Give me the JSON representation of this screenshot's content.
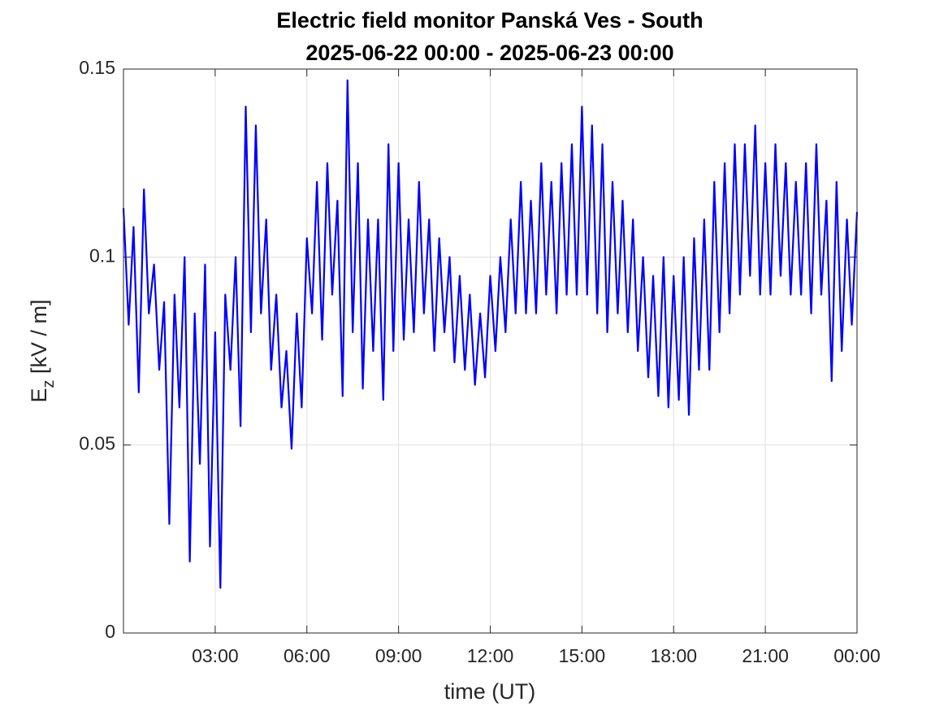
{
  "chart_data": {
    "type": "line",
    "title": "Electric field monitor Panská Ves - South",
    "subtitle": "2025-06-22 00:00 - 2025-06-23 00:00",
    "xlabel": "time (UT)",
    "ylabel": [
      "E",
      "z",
      " [kV / m]"
    ],
    "xlim": [
      0,
      24
    ],
    "ylim": [
      0,
      0.15
    ],
    "xticks": [
      {
        "value": 3,
        "label": "03:00"
      },
      {
        "value": 6,
        "label": "06:00"
      },
      {
        "value": 9,
        "label": "09:00"
      },
      {
        "value": 12,
        "label": "12:00"
      },
      {
        "value": 15,
        "label": "15:00"
      },
      {
        "value": 18,
        "label": "18:00"
      },
      {
        "value": 21,
        "label": "21:00"
      },
      {
        "value": 24,
        "label": "00:00"
      }
    ],
    "yticks": [
      0,
      0.05,
      0.1,
      0.15
    ],
    "grid": true,
    "series": [
      {
        "color": "#0000ff",
        "x": [
          0,
          0.17,
          0.33,
          0.5,
          0.67,
          0.83,
          1,
          1.17,
          1.33,
          1.5,
          1.67,
          1.83,
          2,
          2.17,
          2.33,
          2.5,
          2.67,
          2.83,
          3,
          3.17,
          3.33,
          3.5,
          3.67,
          3.83,
          4,
          4.17,
          4.33,
          4.5,
          4.67,
          4.83,
          5,
          5.17,
          5.33,
          5.5,
          5.67,
          5.83,
          6,
          6.17,
          6.33,
          6.5,
          6.67,
          6.83,
          7,
          7.17,
          7.33,
          7.5,
          7.67,
          7.83,
          8,
          8.17,
          8.33,
          8.5,
          8.67,
          8.83,
          9,
          9.17,
          9.33,
          9.5,
          9.67,
          9.83,
          10,
          10.17,
          10.33,
          10.5,
          10.67,
          10.83,
          11,
          11.17,
          11.33,
          11.5,
          11.67,
          11.83,
          12,
          12.17,
          12.33,
          12.5,
          12.67,
          12.83,
          13,
          13.17,
          13.33,
          13.5,
          13.67,
          13.83,
          14,
          14.17,
          14.33,
          14.5,
          14.67,
          14.83,
          15,
          15.17,
          15.33,
          15.5,
          15.67,
          15.83,
          16,
          16.17,
          16.33,
          16.5,
          16.67,
          16.83,
          17,
          17.17,
          17.33,
          17.5,
          17.67,
          17.83,
          18,
          18.17,
          18.33,
          18.5,
          18.67,
          18.83,
          19,
          19.17,
          19.33,
          19.5,
          19.67,
          19.83,
          20,
          20.17,
          20.33,
          20.5,
          20.67,
          20.83,
          21,
          21.17,
          21.33,
          21.5,
          21.67,
          21.83,
          22,
          22.17,
          22.33,
          22.5,
          22.67,
          22.83,
          23,
          23.17,
          23.33,
          23.5,
          23.67,
          23.83,
          24
        ],
        "values": [
          0.113,
          0.082,
          0.108,
          0.064,
          0.118,
          0.085,
          0.098,
          0.07,
          0.088,
          0.029,
          0.09,
          0.06,
          0.1,
          0.019,
          0.085,
          0.045,
          0.098,
          0.023,
          0.08,
          0.012,
          0.09,
          0.07,
          0.1,
          0.055,
          0.14,
          0.08,
          0.135,
          0.085,
          0.11,
          0.07,
          0.09,
          0.06,
          0.075,
          0.049,
          0.085,
          0.06,
          0.105,
          0.085,
          0.12,
          0.078,
          0.125,
          0.09,
          0.115,
          0.063,
          0.147,
          0.08,
          0.125,
          0.065,
          0.11,
          0.075,
          0.11,
          0.062,
          0.13,
          0.075,
          0.125,
          0.078,
          0.11,
          0.08,
          0.12,
          0.085,
          0.11,
          0.075,
          0.105,
          0.08,
          0.1,
          0.072,
          0.095,
          0.07,
          0.09,
          0.066,
          0.085,
          0.068,
          0.095,
          0.075,
          0.1,
          0.08,
          0.11,
          0.085,
          0.12,
          0.085,
          0.115,
          0.085,
          0.125,
          0.09,
          0.12,
          0.085,
          0.125,
          0.09,
          0.13,
          0.09,
          0.14,
          0.09,
          0.135,
          0.085,
          0.13,
          0.08,
          0.12,
          0.085,
          0.115,
          0.08,
          0.11,
          0.075,
          0.1,
          0.068,
          0.095,
          0.063,
          0.1,
          0.06,
          0.095,
          0.062,
          0.1,
          0.058,
          0.105,
          0.07,
          0.11,
          0.07,
          0.12,
          0.08,
          0.125,
          0.085,
          0.13,
          0.09,
          0.13,
          0.095,
          0.135,
          0.09,
          0.125,
          0.09,
          0.13,
          0.095,
          0.125,
          0.09,
          0.12,
          0.09,
          0.125,
          0.085,
          0.13,
          0.09,
          0.115,
          0.067,
          0.12,
          0.075,
          0.11,
          0.082,
          0.112
        ]
      }
    ]
  }
}
